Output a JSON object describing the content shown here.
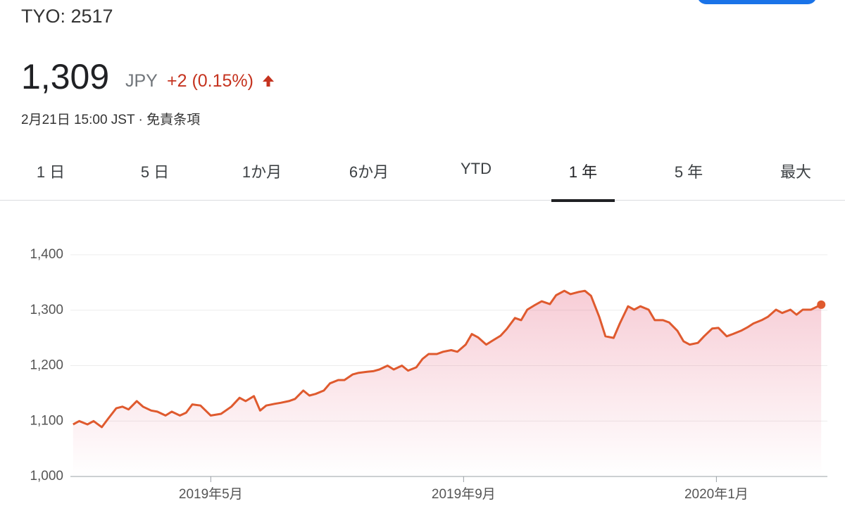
{
  "header": {
    "ticker": "TYO: 2517",
    "price": "1,309",
    "currency": "JPY",
    "change": "+2 (0.15%)",
    "timestamp": "2月21日 15:00 JST",
    "separator": "·",
    "disclaimer": "免責条項"
  },
  "tabs": [
    "1 日",
    "5 日",
    "1か月",
    "6か月",
    "YTD",
    "1 年",
    "5 年",
    "最大"
  ],
  "selected_tab": 5,
  "chart_data": {
    "type": "line",
    "color": "#df5a2e",
    "grid": true,
    "x": [
      0,
      3,
      7,
      10,
      14,
      17,
      21,
      24,
      27,
      31,
      34,
      38,
      41,
      45,
      48,
      52,
      55,
      58,
      62,
      67,
      72,
      77,
      81,
      84,
      88,
      91,
      94,
      98,
      101,
      105,
      108,
      112,
      115,
      118,
      122,
      125,
      129,
      132,
      136,
      139,
      143,
      146,
      149,
      153,
      156,
      160,
      163,
      167,
      170,
      173,
      177,
      180,
      184,
      187,
      191,
      194,
      197,
      201,
      204,
      208,
      211,
      215,
      218,
      221,
      225,
      228,
      232,
      235,
      239,
      242,
      246,
      249,
      252,
      256,
      259,
      263,
      266,
      270,
      273,
      276,
      280,
      283,
      287,
      290,
      294,
      297,
      300,
      304,
      307,
      311,
      314,
      318,
      321,
      325,
      328,
      331,
      335,
      338,
      342,
      345,
      349,
      352,
      355,
      359,
      364
    ],
    "values": [
      1094,
      1100,
      1094,
      1100,
      1089,
      1104,
      1123,
      1126,
      1121,
      1136,
      1126,
      1119,
      1117,
      1110,
      1117,
      1110,
      1115,
      1130,
      1128,
      1110,
      1113,
      1126,
      1142,
      1136,
      1145,
      1119,
      1128,
      1131,
      1133,
      1136,
      1140,
      1155,
      1146,
      1149,
      1155,
      1168,
      1174,
      1174,
      1184,
      1187,
      1189,
      1190,
      1193,
      1200,
      1193,
      1200,
      1191,
      1197,
      1212,
      1221,
      1221,
      1225,
      1228,
      1225,
      1238,
      1257,
      1251,
      1238,
      1245,
      1254,
      1266,
      1286,
      1282,
      1301,
      1310,
      1316,
      1311,
      1327,
      1335,
      1329,
      1333,
      1335,
      1326,
      1288,
      1253,
      1250,
      1276,
      1307,
      1301,
      1307,
      1301,
      1282,
      1282,
      1278,
      1263,
      1244,
      1238,
      1241,
      1253,
      1267,
      1268,
      1253,
      1257,
      1263,
      1269,
      1276,
      1282,
      1288,
      1301,
      1295,
      1301,
      1292,
      1301,
      1301,
      1310
    ],
    "xlim": [
      -3,
      367
    ],
    "xticks": [
      {
        "value": 67,
        "label": "2019年5月"
      },
      {
        "value": 190,
        "label": "2019年9月"
      },
      {
        "value": 313,
        "label": "2020年1月"
      }
    ],
    "ylim": [
      1000,
      1400
    ],
    "yticks": [
      {
        "value": 1000,
        "label": "1,000"
      },
      {
        "value": 1100,
        "label": "1,100"
      },
      {
        "value": 1200,
        "label": "1,200"
      },
      {
        "value": 1300,
        "label": "1,300"
      },
      {
        "value": 1400,
        "label": "1,400"
      }
    ]
  }
}
